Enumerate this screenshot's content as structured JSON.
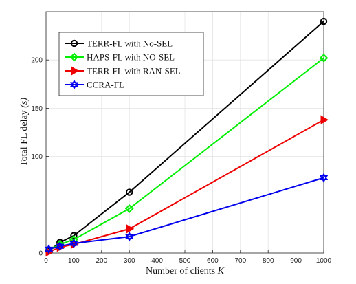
{
  "chart_data": {
    "type": "line",
    "xlabel": "Number of clients",
    "xlabel_var": "K",
    "ylabel": "Total FL delay",
    "ylabel_unit": "(s)",
    "xlim": [
      0,
      1000
    ],
    "ylim": [
      0,
      250
    ],
    "xticks": [
      0,
      100,
      200,
      300,
      400,
      500,
      600,
      700,
      800,
      900,
      1000
    ],
    "yticks": [
      0,
      100,
      150,
      200
    ],
    "grid": true,
    "legend_position": "top-left",
    "series": [
      {
        "name": "TERR-FL with No-SEL",
        "color": "#000000",
        "marker": "circle",
        "x": [
          10,
          50,
          100,
          300,
          1000
        ],
        "y": [
          2,
          11,
          18,
          63,
          240
        ]
      },
      {
        "name": "HAPS-FL with NO-SEL",
        "color": "#00ee00",
        "marker": "diamond",
        "x": [
          10,
          50,
          100,
          300,
          1000
        ],
        "y": [
          3,
          9,
          14,
          46,
          202
        ]
      },
      {
        "name": "TERR-FL with RAN-SEL",
        "color": "#ee0000",
        "marker": "triangle-right",
        "x": [
          10,
          50,
          100,
          300,
          1000
        ],
        "y": [
          1,
          6,
          9,
          25,
          138
        ]
      },
      {
        "name": "CCRA-FL",
        "color": "#0000ee",
        "marker": "hexagram",
        "x": [
          10,
          50,
          100,
          300,
          1000
        ],
        "y": [
          4,
          7,
          10,
          17,
          78
        ]
      }
    ]
  }
}
